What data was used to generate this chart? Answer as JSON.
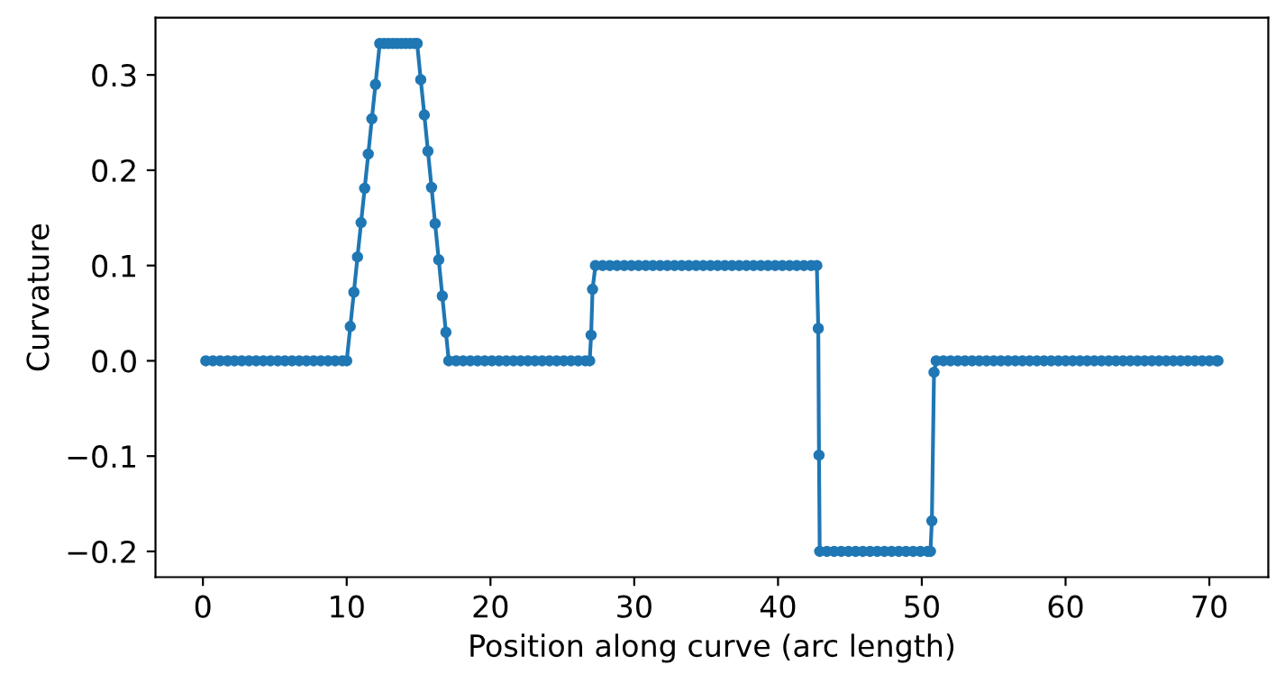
{
  "chart_data": {
    "type": "line",
    "xlabel": "Position along curve (arc length)",
    "ylabel": "Curvature",
    "marker": "circle",
    "line_style": "solid",
    "grid": false,
    "legend": false,
    "xlim": [
      -3.3,
      74.1
    ],
    "ylim": [
      -0.227,
      0.36
    ],
    "xticks": [
      0,
      10,
      20,
      30,
      40,
      50,
      60,
      70
    ],
    "yticks": [
      {
        "value": -0.2,
        "label": "−0.2"
      },
      {
        "value": -0.1,
        "label": "−0.1"
      },
      {
        "value": 0.0,
        "label": "0.0"
      },
      {
        "value": 0.1,
        "label": "0.1"
      },
      {
        "value": 0.2,
        "label": "0.2"
      },
      {
        "value": 0.3,
        "label": "0.3"
      }
    ],
    "series": [
      {
        "color": "#1f77b4",
        "x": [
          0.2,
          0.7,
          1.2,
          1.7,
          2.2,
          2.7,
          3.2,
          3.7,
          4.2,
          4.7,
          5.2,
          5.7,
          6.2,
          6.7,
          7.2,
          7.7,
          8.2,
          8.7,
          9.2,
          9.7,
          10.0,
          10.25,
          10.5,
          10.75,
          11,
          11.25,
          11.5,
          11.75,
          12,
          12.3,
          12.6,
          12.9,
          13.2,
          13.5,
          13.8,
          14.1,
          14.4,
          14.7,
          14.9,
          15.15,
          15.4,
          15.65,
          15.9,
          16.15,
          16.4,
          16.65,
          16.9,
          17.1,
          17.6,
          18.1,
          18.6,
          19.1,
          19.6,
          20.1,
          20.6,
          21.1,
          21.6,
          22.1,
          22.6,
          23.1,
          23.6,
          24.1,
          24.6,
          25.1,
          25.6,
          26.1,
          26.6,
          26.9,
          27.0,
          27.1,
          27.3,
          27.8,
          28.3,
          28.8,
          29.3,
          29.8,
          30.3,
          30.8,
          31.3,
          31.8,
          32.3,
          32.8,
          33.3,
          33.8,
          34.3,
          34.8,
          35.3,
          35.8,
          36.3,
          36.8,
          37.3,
          37.8,
          38.3,
          38.8,
          39.3,
          39.8,
          40.3,
          40.8,
          41.3,
          41.8,
          42.3,
          42.7,
          42.8,
          42.85,
          42.9,
          43.4,
          43.9,
          44.4,
          44.9,
          45.4,
          45.9,
          46.4,
          46.9,
          47.4,
          47.9,
          48.4,
          48.9,
          49.4,
          49.9,
          50.4,
          50.6,
          50.7,
          50.85,
          51.0,
          51.5,
          52.0,
          52.5,
          53.0,
          53.5,
          54.0,
          54.5,
          55.0,
          55.5,
          56.0,
          56.5,
          57.0,
          57.5,
          58.0,
          58.5,
          59.0,
          59.5,
          60.0,
          60.5,
          61.0,
          61.5,
          62.0,
          62.5,
          63.0,
          63.5,
          64.0,
          64.5,
          65.0,
          65.5,
          66.0,
          66.5,
          67.0,
          67.5,
          68.0,
          68.5,
          69.0,
          69.5,
          70.0,
          70.5,
          70.6
        ],
        "values": [
          0,
          0,
          0,
          0,
          0,
          0,
          0,
          0,
          0,
          0,
          0,
          0,
          0,
          0,
          0,
          0,
          0,
          0,
          0,
          0,
          0,
          0.036,
          0.072,
          0.109,
          0.145,
          0.181,
          0.217,
          0.254,
          0.29,
          0.333,
          0.333,
          0.333,
          0.333,
          0.333,
          0.333,
          0.333,
          0.333,
          0.333,
          0.333,
          0.295,
          0.258,
          0.22,
          0.182,
          0.144,
          0.106,
          0.068,
          0.03,
          0,
          0,
          0,
          0,
          0,
          0,
          0,
          0,
          0,
          0,
          0,
          0,
          0,
          0,
          0,
          0,
          0,
          0,
          0,
          0,
          0,
          0.027,
          0.075,
          0.1,
          0.1,
          0.1,
          0.1,
          0.1,
          0.1,
          0.1,
          0.1,
          0.1,
          0.1,
          0.1,
          0.1,
          0.1,
          0.1,
          0.1,
          0.1,
          0.1,
          0.1,
          0.1,
          0.1,
          0.1,
          0.1,
          0.1,
          0.1,
          0.1,
          0.1,
          0.1,
          0.1,
          0.1,
          0.1,
          0.1,
          0.1,
          0.034,
          -0.099,
          -0.2,
          -0.2,
          -0.2,
          -0.2,
          -0.2,
          -0.2,
          -0.2,
          -0.2,
          -0.2,
          -0.2,
          -0.2,
          -0.2,
          -0.2,
          -0.2,
          -0.2,
          -0.2,
          -0.2,
          -0.168,
          -0.012,
          0,
          0,
          0,
          0,
          0,
          0,
          0,
          0,
          0,
          0,
          0,
          0,
          0,
          0,
          0,
          0,
          0,
          0,
          0,
          0,
          0,
          0,
          0,
          0,
          0,
          0,
          0,
          0,
          0,
          0,
          0,
          0,
          0,
          0,
          0,
          0,
          0,
          0,
          0,
          0,
          0
        ]
      }
    ]
  }
}
